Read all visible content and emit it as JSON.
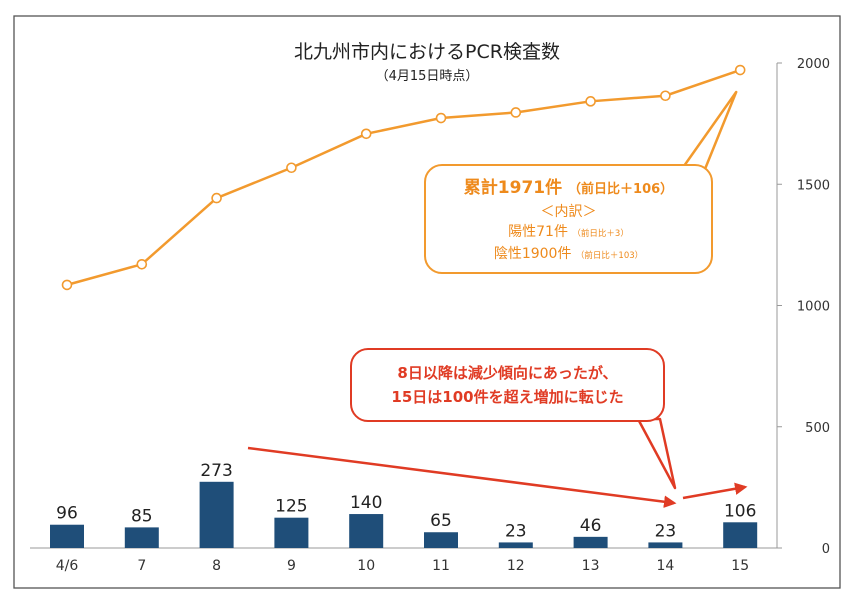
{
  "chart_data": {
    "type": "bar+line",
    "title": "北九州市内におけるPCR検査数",
    "subtitle": "（4月15日時点）",
    "categories": [
      "4/6",
      "7",
      "8",
      "9",
      "10",
      "11",
      "12",
      "13",
      "14",
      "15"
    ],
    "series": [
      {
        "type": "bar",
        "values": [
          96,
          85,
          273,
          125,
          140,
          65,
          23,
          46,
          23,
          106
        ],
        "color": "#1f4e79"
      },
      {
        "type": "line",
        "values": [
          1085,
          1170,
          1443,
          1568,
          1708,
          1773,
          1796,
          1842,
          1865,
          1971
        ],
        "color": "#f29a2e"
      }
    ],
    "y_axis": {
      "position": "right",
      "min": 0,
      "max": 2000,
      "ticks": [
        0,
        500,
        1000,
        1500,
        2000
      ]
    }
  },
  "callout_total": {
    "main": "累計1971件",
    "main_note": "（前日比＋106）",
    "heading": "＜内訳＞",
    "positive": "陽性71件",
    "positive_note": "（前日比＋3）",
    "negative": "陰性1900件",
    "negative_note": "（前日比＋103）"
  },
  "callout_trend": {
    "line1": "8日以降は減少傾向にあったが、",
    "line2": "15日は100件を超え増加に転じた"
  },
  "colors": {
    "bar": "#1f4e79",
    "line": "#f29a2e",
    "trend": "#e03b24",
    "frame": "#555555"
  }
}
